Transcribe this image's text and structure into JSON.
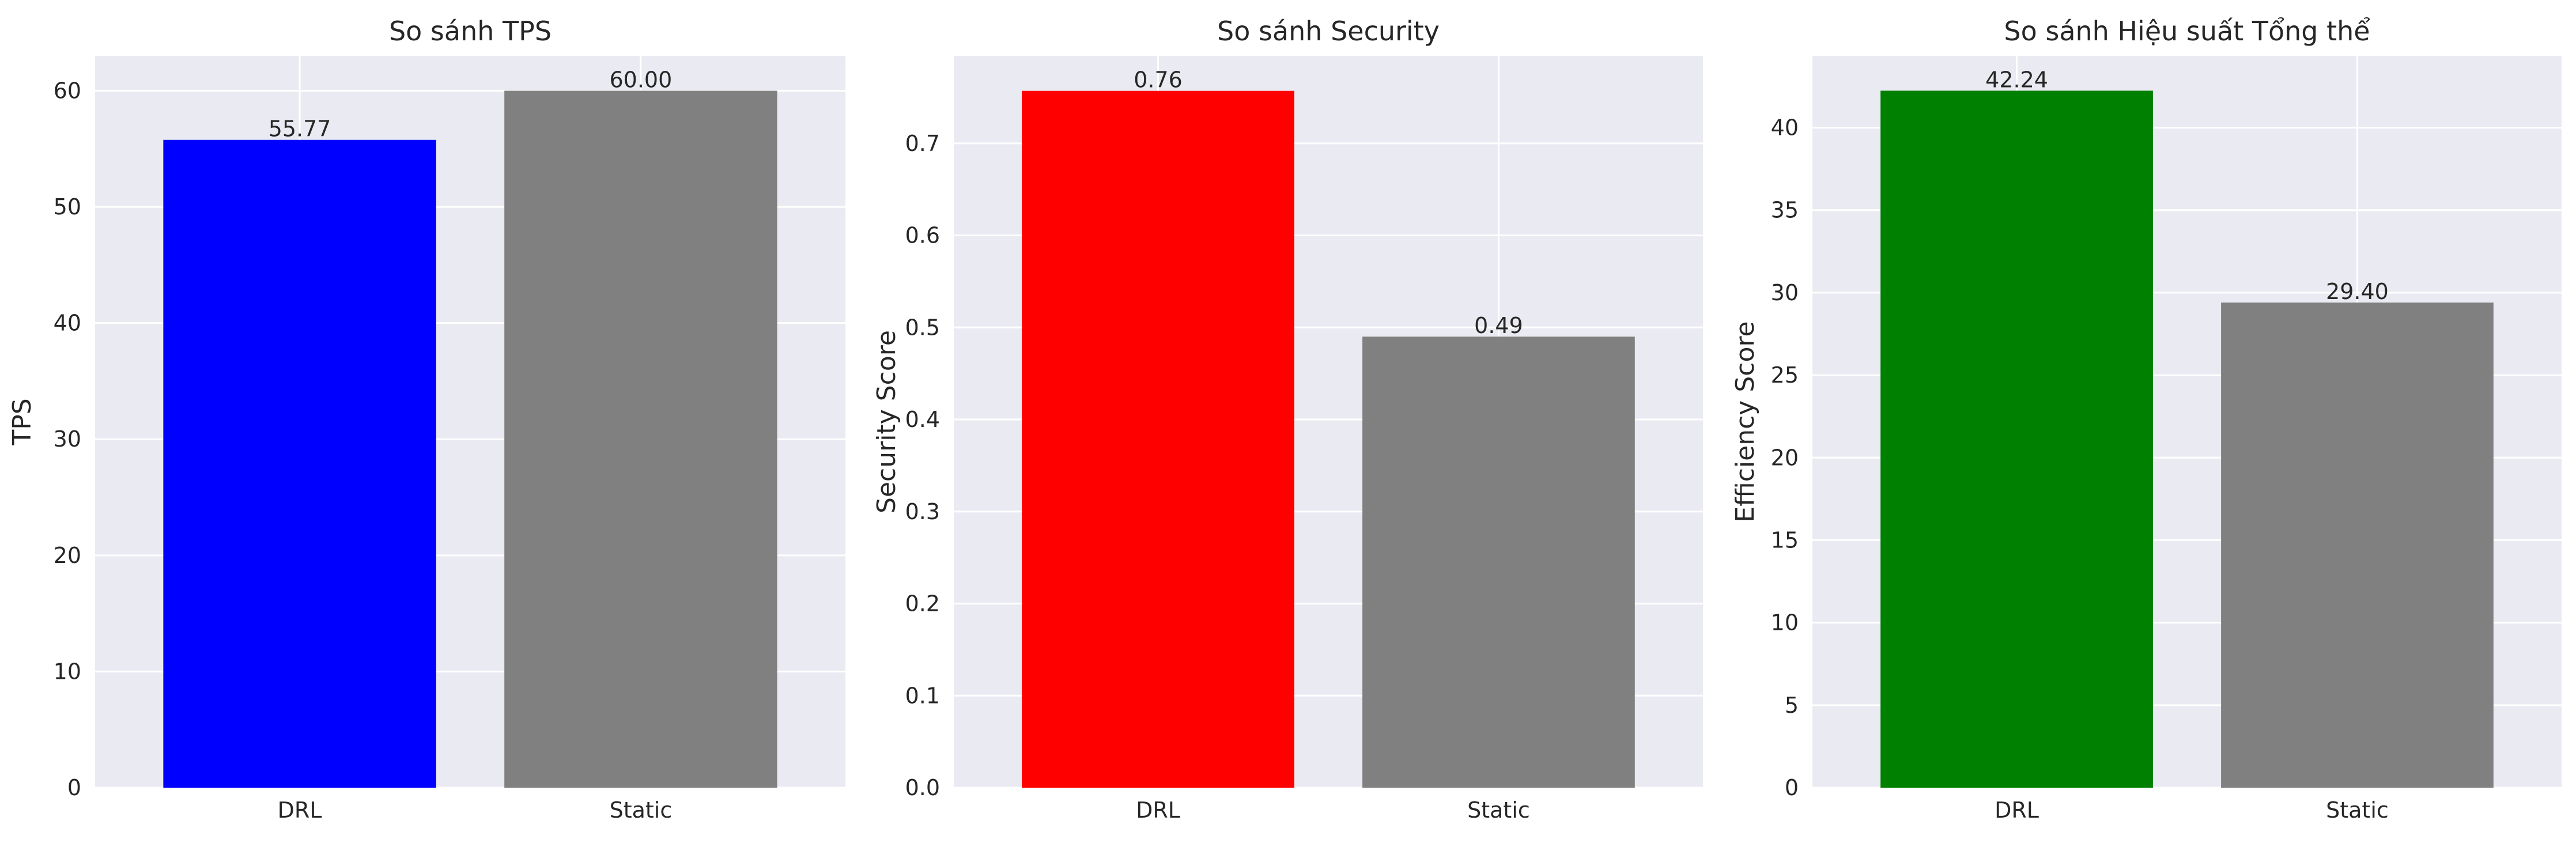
{
  "chart_data": [
    {
      "type": "bar",
      "title": "So sánh TPS",
      "xlabel": "",
      "ylabel": "TPS",
      "categories": [
        "DRL",
        "Static"
      ],
      "values": [
        55.77,
        60.0
      ],
      "value_labels": [
        "55.77",
        "60.00"
      ],
      "colors": [
        "#0000ff",
        "#808080"
      ],
      "ylim": [
        0,
        63
      ],
      "yticks": [
        0,
        10,
        20,
        30,
        40,
        50,
        60
      ],
      "ytick_labels": [
        "0",
        "10",
        "20",
        "30",
        "40",
        "50",
        "60"
      ],
      "grid": true
    },
    {
      "type": "bar",
      "title": "So sánh Security",
      "xlabel": "",
      "ylabel": "Security Score",
      "categories": [
        "DRL",
        "Static"
      ],
      "values": [
        0.757,
        0.49
      ],
      "value_labels": [
        "0.76",
        "0.49"
      ],
      "colors": [
        "#ff0000",
        "#808080"
      ],
      "ylim": [
        0,
        0.795
      ],
      "yticks": [
        0.0,
        0.1,
        0.2,
        0.3,
        0.4,
        0.5,
        0.6,
        0.7
      ],
      "ytick_labels": [
        "0.0",
        "0.1",
        "0.2",
        "0.3",
        "0.4",
        "0.5",
        "0.6",
        "0.7"
      ],
      "grid": true
    },
    {
      "type": "bar",
      "title": "So sánh Hiệu suất Tổng thể",
      "xlabel": "",
      "ylabel": "Efficiency Score",
      "categories": [
        "DRL",
        "Static"
      ],
      "values": [
        42.24,
        29.4
      ],
      "value_labels": [
        "42.24",
        "29.40"
      ],
      "colors": [
        "#008000",
        "#808080"
      ],
      "ylim": [
        0,
        44.35
      ],
      "yticks": [
        0,
        5,
        10,
        15,
        20,
        25,
        30,
        35,
        40
      ],
      "ytick_labels": [
        "0",
        "5",
        "10",
        "15",
        "20",
        "25",
        "30",
        "35",
        "40"
      ],
      "grid": true
    }
  ]
}
